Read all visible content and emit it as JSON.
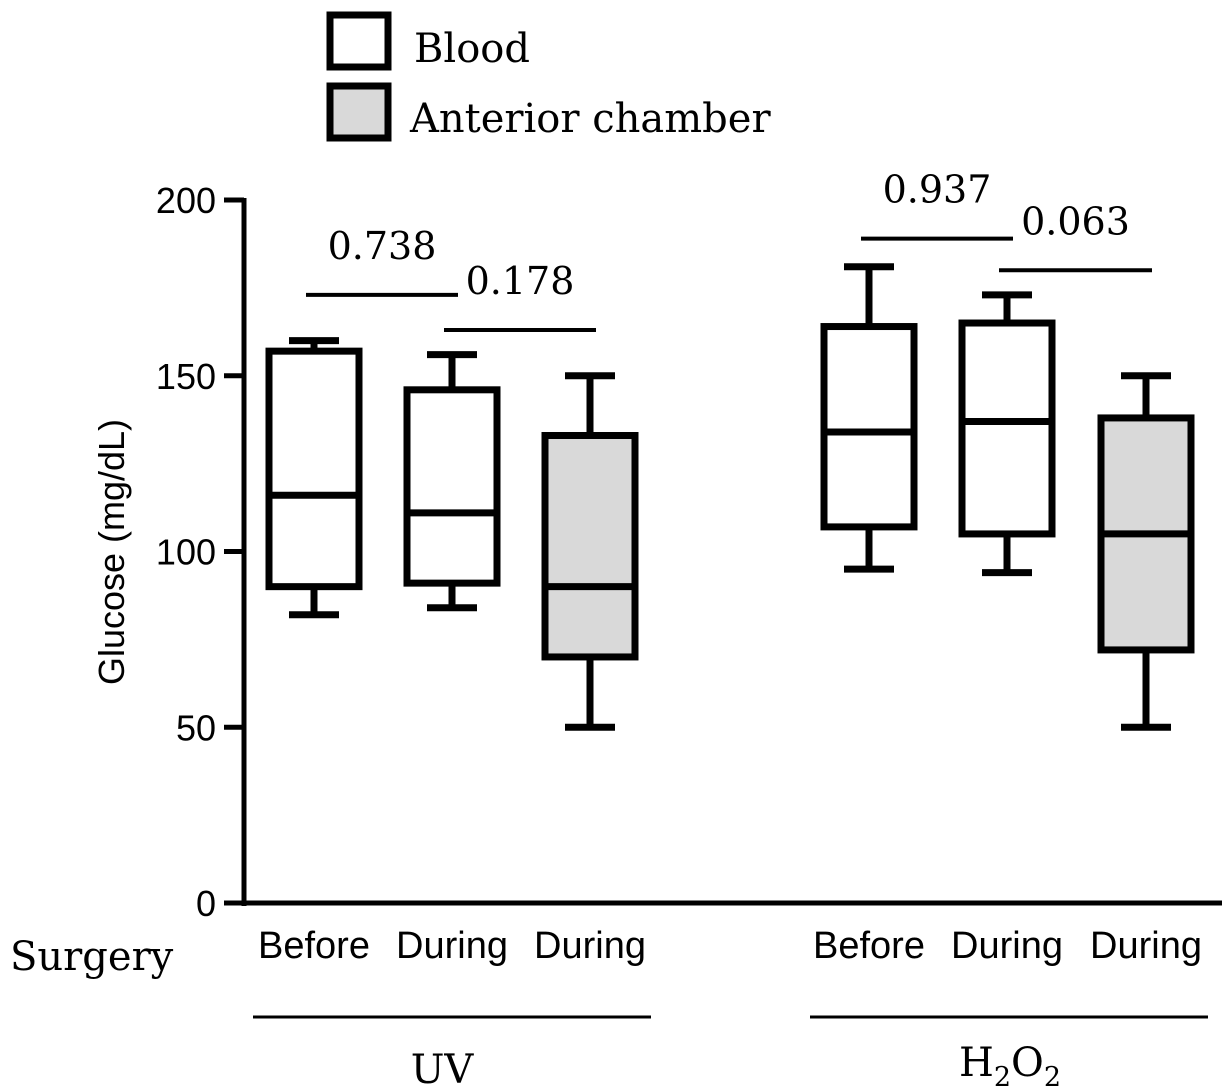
{
  "chart_data": {
    "type": "box",
    "ylabel": "Glucose (mg/dL)",
    "ylim": [
      0,
      200
    ],
    "yticks": [
      "0",
      "50",
      "100",
      "150",
      "200"
    ],
    "row_label": "Surgery",
    "legend": {
      "placement": "top-left",
      "entries": [
        {
          "label": "Blood",
          "color": "#ffffff"
        },
        {
          "label": "Anterior chamber",
          "color": "#d9d9d9"
        }
      ]
    },
    "groups": [
      {
        "label": "UV",
        "boxes": [
          {
            "category": "Before",
            "series": "Blood",
            "min": 82,
            "q1": 90,
            "median": 116,
            "q3": 157,
            "max": 160
          },
          {
            "category": "During",
            "series": "Blood",
            "min": 84,
            "q1": 91,
            "median": 111,
            "q3": 146,
            "max": 156
          },
          {
            "category": "During",
            "series": "Anterior chamber",
            "min": 50,
            "q1": 70,
            "median": 90,
            "q3": 133,
            "max": 150
          }
        ],
        "comparisons": [
          {
            "from": 0,
            "to": 1,
            "y": 173,
            "label": "0.738"
          },
          {
            "from": 1,
            "to": 2,
            "y": 163,
            "label": "0.178"
          }
        ]
      },
      {
        "label": "H₂O₂",
        "label_main": "H",
        "label_sub1": "2",
        "label_mid": "O",
        "label_sub2": "2",
        "boxes": [
          {
            "category": "Before",
            "series": "Blood",
            "min": 95,
            "q1": 107,
            "median": 134,
            "q3": 164,
            "max": 181
          },
          {
            "category": "During",
            "series": "Blood",
            "min": 94,
            "q1": 105,
            "median": 137,
            "q3": 165,
            "max": 173
          },
          {
            "category": "During",
            "series": "Anterior chamber",
            "min": 50,
            "q1": 72,
            "median": 105,
            "q3": 138,
            "max": 150
          }
        ],
        "comparisons": [
          {
            "from": 0,
            "to": 1,
            "y": 189,
            "label": "0.937"
          },
          {
            "from": 1,
            "to": 2,
            "y": 180,
            "label": "0.063"
          }
        ]
      }
    ]
  }
}
